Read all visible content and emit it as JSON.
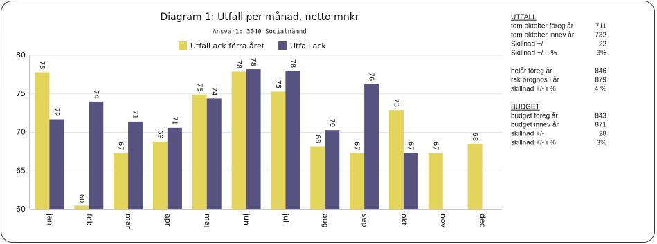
{
  "chart_data": {
    "type": "bar",
    "title": "Diagram 1: Utfall per månad, netto mnkr",
    "subtitle": "Ansvar1: 3040-Socialnämnd",
    "categories": [
      "jan",
      "feb",
      "mar",
      "apr",
      "maj",
      "jun",
      "jul",
      "aug",
      "sep",
      "okt",
      "nov",
      "dec"
    ],
    "series": [
      {
        "name": "Utfall ack förra året",
        "color": "#e3d45c",
        "values": [
          77.8,
          60.5,
          67.3,
          68.8,
          74.9,
          77.9,
          75.3,
          68.2,
          67.3,
          72.9,
          67.3,
          68.5
        ],
        "value_labels": [
          "78",
          "60",
          "67",
          "69",
          "75",
          "78",
          "75",
          "68",
          "67",
          "73",
          "67",
          "68"
        ]
      },
      {
        "name": "Utfall ack",
        "color": "#57527f",
        "values": [
          71.7,
          74.0,
          71.4,
          70.6,
          74.4,
          78.2,
          78.0,
          70.3,
          76.3,
          67.3,
          null,
          null
        ],
        "value_labels": [
          "72",
          "74",
          "71",
          "71",
          "74",
          "78",
          "78",
          "70",
          "76",
          "67",
          null,
          null
        ]
      }
    ],
    "ylim": [
      60,
      80
    ],
    "yticks": [
      60,
      65,
      70,
      75,
      80
    ],
    "grid": true
  },
  "side_panel": {
    "sections": [
      {
        "heading": "UTFALL",
        "rows": [
          [
            "tom  oktober föreg år",
            "711"
          ],
          [
            "tom  oktober innev år",
            "732"
          ],
          [
            "Skillnad +/-",
            "22"
          ],
          [
            "Skillnad +/- i %",
            "3%"
          ]
        ]
      },
      {
        "heading": null,
        "rows": [
          [
            "helår föreg år",
            "846"
          ],
          [
            "rak prognos i år",
            "879"
          ],
          [
            "skillnad +/- i %",
            "4 %"
          ]
        ]
      },
      {
        "heading": "BUDGET",
        "rows": [
          [
            "budget föreg år",
            "843"
          ],
          [
            "budget innev år",
            "871"
          ],
          [
            "skillnad +/-",
            "28"
          ],
          [
            "skillnad +/- i %",
            "3%"
          ]
        ]
      }
    ]
  }
}
